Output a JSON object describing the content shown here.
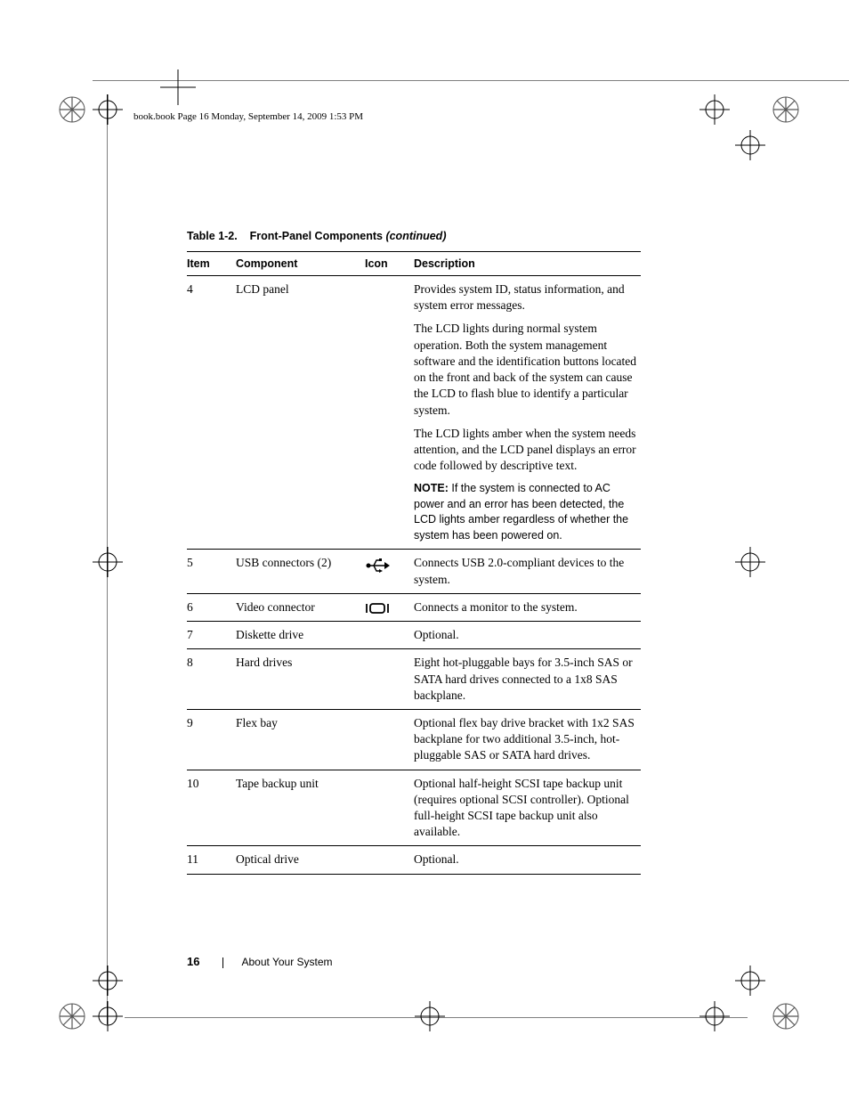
{
  "header_text": "book.book  Page 16  Monday, September 14, 2009  1:53 PM",
  "caption": {
    "label": "Table 1-2.",
    "title": "Front-Panel Components",
    "continued": "(continued)"
  },
  "columns": [
    "Item",
    "Component",
    "Icon",
    "Description"
  ],
  "rows": [
    {
      "item": "4",
      "component": "LCD panel",
      "icon": null,
      "description": [
        {
          "type": "text",
          "text": "Provides system ID, status information, and system error messages."
        },
        {
          "type": "text",
          "text": "The LCD lights during normal system operation. Both the system management software and the identification buttons located on the front and back of the system can cause the LCD to flash blue to identify a particular system."
        },
        {
          "type": "text",
          "text": "The LCD lights amber when the system needs attention, and the LCD panel displays an error code followed by descriptive text."
        },
        {
          "type": "note",
          "label": "NOTE:",
          "text": " If the system is connected to AC power and an error has been detected, the LCD lights amber regardless of whether the system has been powered on."
        }
      ]
    },
    {
      "item": "5",
      "component": "USB connectors (2)",
      "icon": "usb",
      "description": [
        {
          "type": "text",
          "text": "Connects USB 2.0-compliant devices to the system."
        }
      ]
    },
    {
      "item": "6",
      "component": "Video connector",
      "icon": "video",
      "description": [
        {
          "type": "text",
          "text": "Connects a monitor to the system."
        }
      ]
    },
    {
      "item": "7",
      "component": "Diskette drive",
      "icon": null,
      "description": [
        {
          "type": "text",
          "text": "Optional."
        }
      ]
    },
    {
      "item": "8",
      "component": "Hard drives",
      "icon": null,
      "description": [
        {
          "type": "text",
          "text": "Eight hot-pluggable bays for 3.5-inch SAS or SATA hard drives connected to a 1x8 SAS backplane."
        }
      ]
    },
    {
      "item": "9",
      "component": "Flex bay",
      "icon": null,
      "description": [
        {
          "type": "text",
          "text": "Optional flex bay drive bracket with 1x2 SAS backplane for two additional 3.5-inch, hot-pluggable SAS or SATA hard drives."
        }
      ]
    },
    {
      "item": "10",
      "component": "Tape backup unit",
      "icon": null,
      "description": [
        {
          "type": "text",
          "text": "Optional half-height SCSI tape backup unit (requires optional SCSI controller). Optional full-height SCSI tape backup unit also available."
        }
      ]
    },
    {
      "item": "11",
      "component": "Optical drive",
      "icon": null,
      "description": [
        {
          "type": "text",
          "text": "Optional."
        }
      ]
    }
  ],
  "footer": {
    "page_number": "16",
    "section": "About Your System"
  }
}
